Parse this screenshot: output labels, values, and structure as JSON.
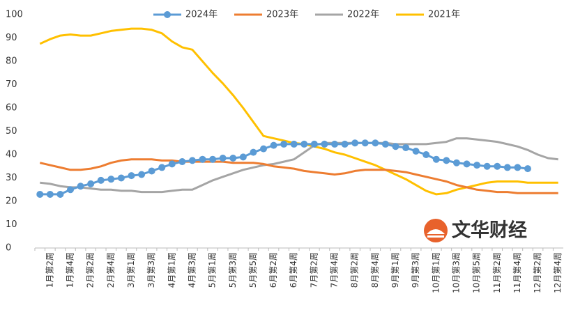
{
  "chart_data": {
    "type": "line",
    "categories": [
      null,
      "1月第2周",
      null,
      "1月第4周",
      null,
      "2月第2周",
      null,
      "2月第4周",
      null,
      "3月第1周",
      null,
      "3月第3周",
      null,
      "4月第1周",
      null,
      "4月第3周",
      null,
      "5月第1周",
      null,
      "5月第3周",
      null,
      "5月第5周",
      null,
      "6月第2周",
      null,
      "6月第4周",
      null,
      "7月第2周",
      null,
      "7月第4周",
      null,
      "8月第2周",
      null,
      "8月第4周",
      null,
      "9月第1周",
      null,
      "9月第3周",
      null,
      "10月第1周",
      null,
      "10月第3周",
      null,
      "10月第5周",
      null,
      "11月第2周",
      null,
      "11月第4周",
      null,
      "12月第2周",
      null,
      "12月第4周"
    ],
    "series": [
      {
        "name": "2024年",
        "color": "#5b9bd5",
        "markers": true,
        "values": [
          23,
          23,
          23,
          25,
          26.5,
          27.5,
          29,
          29.5,
          30,
          31,
          31.5,
          33,
          34.5,
          36,
          37,
          37.5,
          38,
          38,
          38.5,
          38.5,
          39,
          41,
          42.5,
          44,
          44.5,
          44.5,
          44.5,
          44.5,
          44.5,
          44.5,
          44.5,
          45,
          45,
          45,
          44.5,
          43.5,
          43,
          41.5,
          40,
          38,
          37.5,
          36.5,
          36,
          35.5,
          35,
          35,
          34.5,
          34.5,
          34,
          null,
          null,
          null
        ]
      },
      {
        "name": "2023年",
        "color": "#ed7d31",
        "markers": false,
        "values": [
          36.5,
          35.5,
          34.5,
          33.5,
          33.5,
          34,
          35,
          36.5,
          37.5,
          38,
          38,
          38,
          37.5,
          37.5,
          37,
          37,
          37,
          37,
          37,
          36.5,
          36.5,
          36.5,
          36,
          35,
          34.5,
          34,
          33,
          32.5,
          32,
          31.5,
          32,
          33,
          33.5,
          33.5,
          33.5,
          33,
          32.5,
          31.5,
          30.5,
          29.5,
          28.5,
          27,
          26,
          25,
          24.5,
          24,
          24,
          23.5,
          23.5,
          23.5,
          23.5,
          23.5
        ]
      },
      {
        "name": "2022年",
        "color": "#a5a5a5",
        "markers": false,
        "values": [
          28,
          27.5,
          26.5,
          26,
          26,
          25.5,
          25,
          25,
          24.5,
          24.5,
          24,
          24,
          24,
          24.5,
          25,
          25,
          27,
          29,
          30.5,
          32,
          33.5,
          34.5,
          35.5,
          36,
          37,
          38,
          41,
          44,
          45,
          45,
          45,
          45,
          45,
          45,
          45,
          44.5,
          44.5,
          44.5,
          44.5,
          45,
          45.5,
          47,
          47,
          46.5,
          46,
          45.5,
          44.5,
          43.5,
          42,
          40,
          38.5,
          38
        ]
      },
      {
        "name": "2021年",
        "color": "#ffc000",
        "markers": false,
        "values": [
          87.5,
          89.5,
          91,
          91.5,
          91,
          91,
          92,
          93,
          93.5,
          94,
          94,
          93.5,
          92,
          88.5,
          86,
          85,
          80,
          75,
          70.5,
          65.5,
          60,
          54,
          48,
          47,
          46,
          45,
          44.5,
          43.5,
          42.5,
          41,
          40,
          38.5,
          37,
          35.5,
          33.5,
          31.5,
          29.5,
          27,
          24.5,
          23,
          23.5,
          25,
          26,
          27,
          28,
          28.5,
          28.5,
          28.5,
          28,
          28,
          28,
          28
        ]
      }
    ],
    "ylim": [
      0,
      100
    ],
    "yticks": [
      0,
      10,
      20,
      30,
      40,
      50,
      60,
      70,
      80,
      90,
      100
    ],
    "grid": false,
    "legend": "top",
    "watermark": "文华财经"
  }
}
